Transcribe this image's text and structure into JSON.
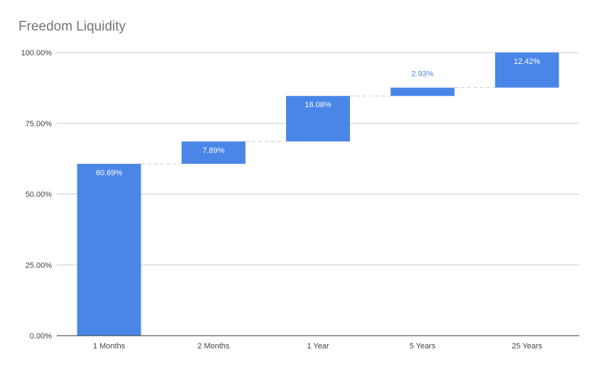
{
  "chart_data": {
    "type": "bar",
    "subtype": "waterfall",
    "title": "Freedom Liquidity",
    "xlabel": "",
    "ylabel": "",
    "categories": [
      "1 Months",
      "2 Months",
      "1 Year",
      "5 Years",
      "25 Years"
    ],
    "values": [
      60.69,
      7.89,
      16.08,
      2.93,
      12.42
    ],
    "value_labels": [
      "60.69%",
      "7.89%",
      "16.08%",
      "2.93%",
      "12.42%"
    ],
    "ylim": [
      0,
      100
    ],
    "yticks": [
      0,
      25,
      50,
      75,
      100
    ],
    "ytick_labels": [
      "0.00%",
      "25.00%",
      "50.00%",
      "75.00%",
      "100.00%"
    ],
    "grid": true,
    "legend": "none",
    "colors": {
      "bar": "#4a86e8",
      "grid": "#cccccc",
      "axis": "#333333",
      "connector": "#cccccc",
      "label_inside": "#ffffff",
      "label_outside": "#4a86e8",
      "title": "#757575"
    }
  }
}
